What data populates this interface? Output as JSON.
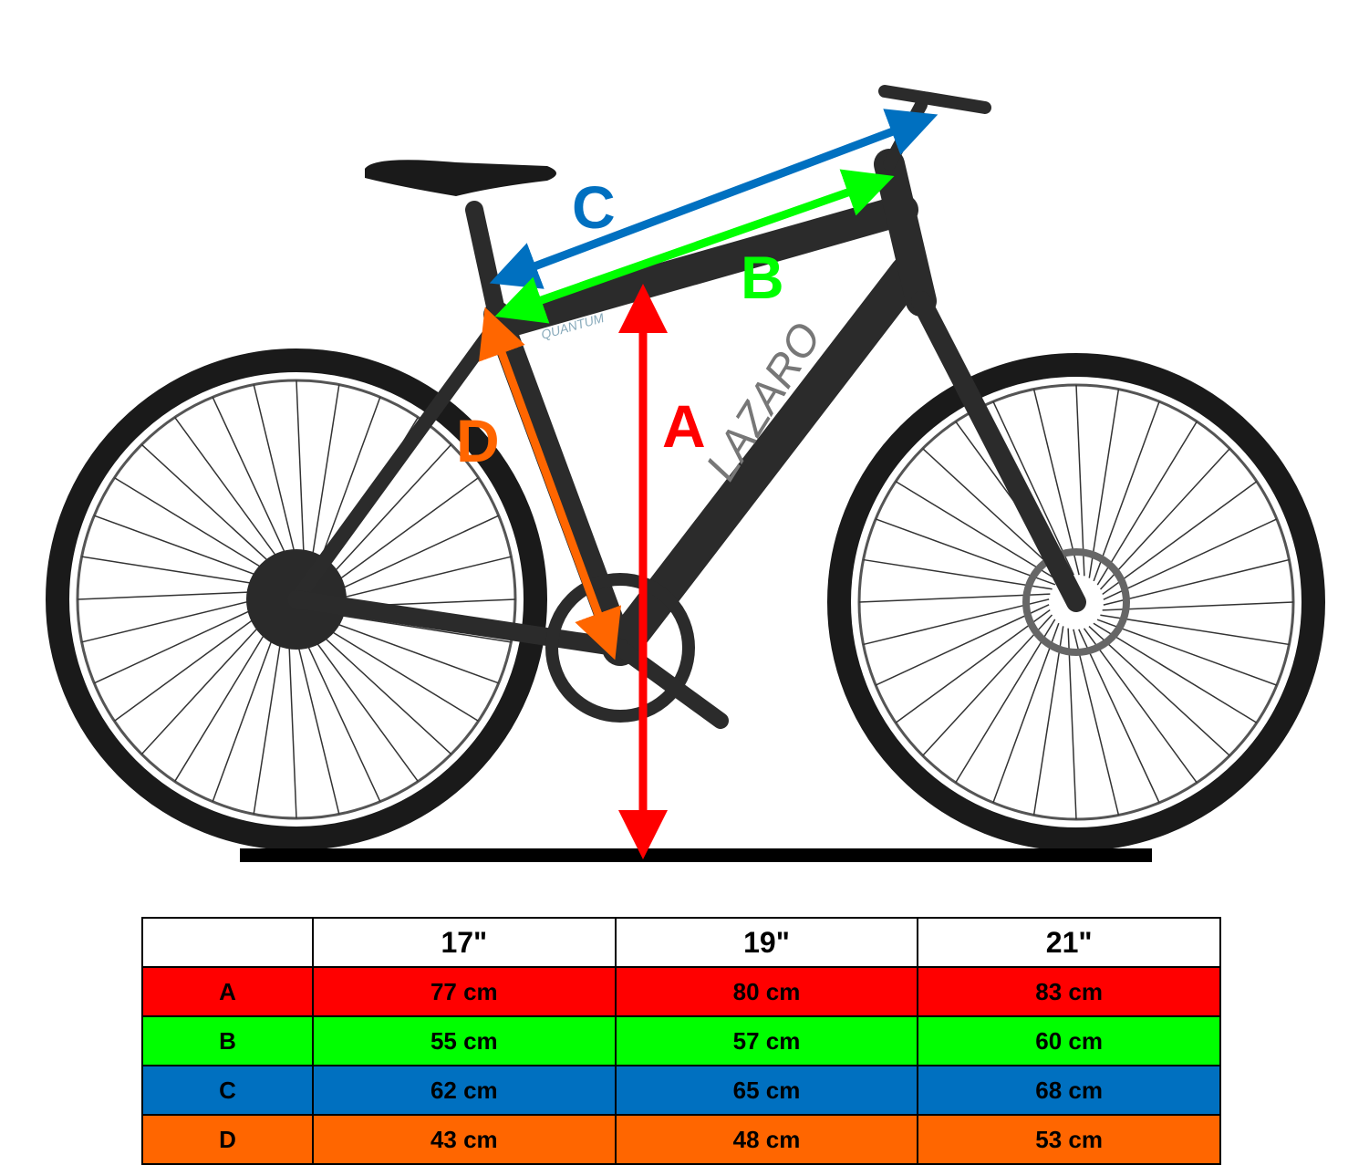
{
  "bike_branding": {
    "frame_brand": "LAZARO",
    "model": "QUANTUM"
  },
  "dimension_labels": {
    "A": {
      "label": "A",
      "color": "#ff0000"
    },
    "B": {
      "label": "B",
      "color": "#00ff00"
    },
    "C": {
      "label": "C",
      "color": "#0070c0"
    },
    "D": {
      "label": "D",
      "color": "#ff6600"
    }
  },
  "size_table": {
    "headers": [
      "",
      "17\"",
      "19\"",
      "21\""
    ],
    "rows": [
      {
        "label": "A",
        "color": "#ff0000",
        "values": [
          "77 cm",
          "80 cm",
          "83 cm"
        ]
      },
      {
        "label": "B",
        "color": "#00ff00",
        "values": [
          "55 cm",
          "57 cm",
          "60 cm"
        ]
      },
      {
        "label": "C",
        "color": "#0070c0",
        "values": [
          "62 cm",
          "65 cm",
          "68 cm"
        ]
      },
      {
        "label": "D",
        "color": "#ff6600",
        "values": [
          "43 cm",
          "48 cm",
          "53 cm"
        ]
      }
    ]
  }
}
